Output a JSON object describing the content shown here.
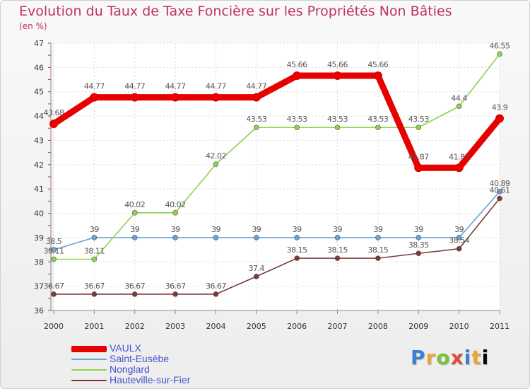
{
  "chart_data": {
    "type": "line",
    "title": "Evolution du Taux de Taxe Foncière sur les Propriétés Non Bâties",
    "unit_label": "(en %)",
    "xlabel": "",
    "ylabel": "",
    "ylim": [
      36,
      47
    ],
    "yticks": [
      36,
      37,
      38,
      39,
      40,
      41,
      42,
      43,
      44,
      45,
      46,
      47
    ],
    "categories": [
      "2000",
      "2001",
      "2002",
      "2003",
      "2004",
      "2005",
      "2006",
      "2007",
      "2008",
      "2009",
      "2010",
      "2011"
    ],
    "grid": true,
    "legend_position": "bottom-left",
    "series": [
      {
        "name": "VAULX",
        "color": "#e60000",
        "values": [
          43.68,
          44.77,
          44.77,
          44.77,
          44.77,
          44.77,
          45.66,
          45.66,
          45.66,
          41.87,
          41.87,
          43.9
        ],
        "labels": [
          "43.68",
          "44.77",
          "44.77",
          "44.77",
          "44.77",
          "44.77",
          "45.66",
          "45.66",
          "45.66",
          "41.87",
          "41.87",
          "43.9"
        ]
      },
      {
        "name": "Saint-Eusèbe",
        "color": "#6ba3d6",
        "values": [
          38.5,
          39,
          39,
          39,
          39,
          39,
          39,
          39,
          39,
          39,
          39,
          40.89
        ],
        "labels": [
          "38.5",
          "39",
          "39",
          "39",
          "39",
          "39",
          "39",
          "39",
          "39",
          "39",
          "39",
          "40.89"
        ]
      },
      {
        "name": "Nonglard",
        "color": "#8ed24f",
        "values": [
          38.11,
          38.11,
          40.02,
          40.02,
          42.02,
          43.53,
          43.53,
          43.53,
          43.53,
          43.53,
          44.4,
          46.55
        ],
        "labels": [
          "38.11",
          "38.11",
          "40.02",
          "40.02",
          "42.02",
          "43.53",
          "43.53",
          "43.53",
          "43.53",
          "43.53",
          "44.4",
          "46.55"
        ]
      },
      {
        "name": "Hauteville-sur-Fier",
        "color": "#7a3a3a",
        "values": [
          36.67,
          36.67,
          36.67,
          36.67,
          36.67,
          37.4,
          38.15,
          38.15,
          38.15,
          38.35,
          38.54,
          40.61
        ],
        "labels": [
          "36.67",
          "36.67",
          "36.67",
          "36.67",
          "36.67",
          "37.4",
          "38.15",
          "38.15",
          "38.15",
          "38.35",
          "38.54",
          "40.61"
        ]
      }
    ]
  },
  "logo": {
    "letters": [
      "P",
      "r",
      "o",
      "x",
      "i",
      "t",
      "i"
    ]
  }
}
